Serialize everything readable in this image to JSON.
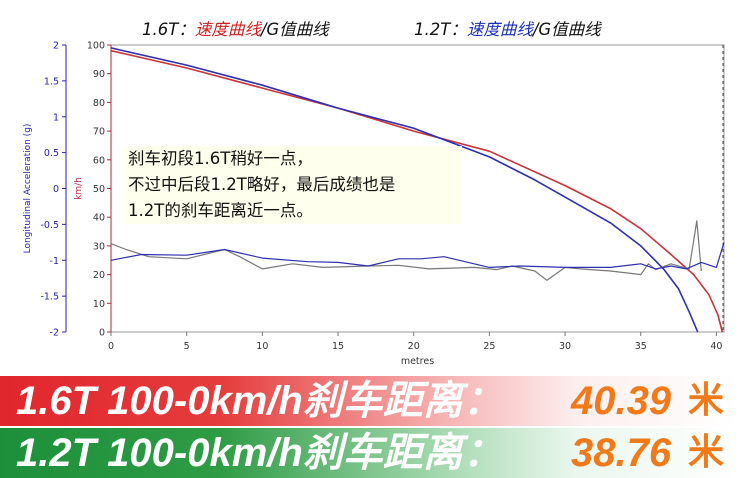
{
  "legend": {
    "left": {
      "engine": "1.6T：",
      "speed": "速度曲线",
      "sep": "/G值曲线"
    },
    "right": {
      "engine": "1.2T：",
      "speed": "速度曲线",
      "sep": "/G值曲线"
    }
  },
  "annotation": [
    "刹车初段1.6T稍好一点，",
    "不过中后段1.2T略好，最后成绩也是",
    "1.2T的刹车距离近一点。"
  ],
  "banners": [
    {
      "label": "1.6T  100-0km/h刹车距离：",
      "value": "40.39",
      "unit": "米"
    },
    {
      "label": "1.2T  100-0km/h刹车距离：",
      "value": "38.76",
      "unit": "米"
    }
  ],
  "colors": {
    "red": "#c8343a",
    "blue": "#2d2fb0",
    "gray": "#777777",
    "axis": "#2323a8",
    "kmh_axis": "#c0203a"
  },
  "chart_data": {
    "type": "line",
    "xlabel": "metres",
    "ylabel_left": "Longitudinal Acceleration (g)",
    "ylabel_right": "km/h",
    "xlim": [
      0,
      40.5
    ],
    "xticks": [
      "0",
      "5",
      "10",
      "15",
      "20",
      "25",
      "30",
      "35",
      "40"
    ],
    "ylim_g": [
      -2,
      2
    ],
    "yticks_g": [
      "2",
      "1.5",
      "1",
      "0.5",
      "0",
      "-0.5",
      "-1",
      "-1.5",
      "-2"
    ],
    "ylim_kmh": [
      0,
      100
    ],
    "yticks_kmh": [
      "100",
      "90",
      "80",
      "70",
      "60",
      "50",
      "40",
      "30",
      "20",
      "10",
      "0"
    ],
    "grid": false,
    "series": [
      {
        "name": "1.6T 速度曲线",
        "axis": "kmh",
        "color": "#c8343a",
        "x": [
          0,
          5,
          10,
          15,
          20,
          25,
          30,
          33,
          35,
          37,
          38.5,
          39.5,
          40.1,
          40.39
        ],
        "y": [
          98,
          92,
          85,
          78,
          70,
          63,
          51,
          43,
          36,
          27,
          20,
          13,
          6,
          0
        ]
      },
      {
        "name": "1.2T 速度曲线",
        "axis": "kmh",
        "color": "#2d2fb0",
        "x": [
          0,
          5,
          10,
          15,
          20,
          25,
          28,
          31,
          33,
          35,
          36.5,
          37.5,
          38.2,
          38.76
        ],
        "y": [
          99,
          93,
          86,
          78,
          71,
          61,
          53,
          44,
          38,
          30,
          22,
          15,
          7,
          0
        ]
      },
      {
        "name": "1.6T G值曲线",
        "axis": "g",
        "color": "#777777",
        "x": [
          0,
          1,
          2.5,
          5,
          7.5,
          8.5,
          10,
          12,
          14,
          17,
          19,
          21,
          24,
          25.5,
          26.5,
          28,
          28.8,
          30,
          31,
          33,
          35,
          35.5,
          36,
          37,
          38.2,
          38.7,
          39
        ],
        "y": [
          -0.77,
          -0.85,
          -0.95,
          -0.98,
          -0.85,
          -0.95,
          -1.12,
          -1.05,
          -1.1,
          -1.08,
          -1.07,
          -1.12,
          -1.1,
          -1.13,
          -1.08,
          -1.15,
          -1.28,
          -1.1,
          -1.12,
          -1.15,
          -1.2,
          -1.05,
          -1.13,
          -1.05,
          -1.12,
          -0.45,
          -1.15
        ]
      },
      {
        "name": "1.2T G值曲线",
        "axis": "g",
        "color": "#2d2fb0",
        "x": [
          0,
          2,
          5,
          7.5,
          10,
          13,
          15,
          17,
          19,
          20.5,
          22,
          25,
          27,
          30,
          33,
          35,
          36,
          37,
          38,
          39,
          40,
          40.5
        ],
        "y": [
          -1.0,
          -0.92,
          -0.93,
          -0.85,
          -0.97,
          -1.02,
          -1.03,
          -1.08,
          -0.98,
          -0.98,
          -0.95,
          -1.1,
          -1.08,
          -1.1,
          -1.1,
          -1.05,
          -1.12,
          -1.08,
          -1.12,
          -1.03,
          -1.1,
          -0.75
        ]
      }
    ]
  }
}
